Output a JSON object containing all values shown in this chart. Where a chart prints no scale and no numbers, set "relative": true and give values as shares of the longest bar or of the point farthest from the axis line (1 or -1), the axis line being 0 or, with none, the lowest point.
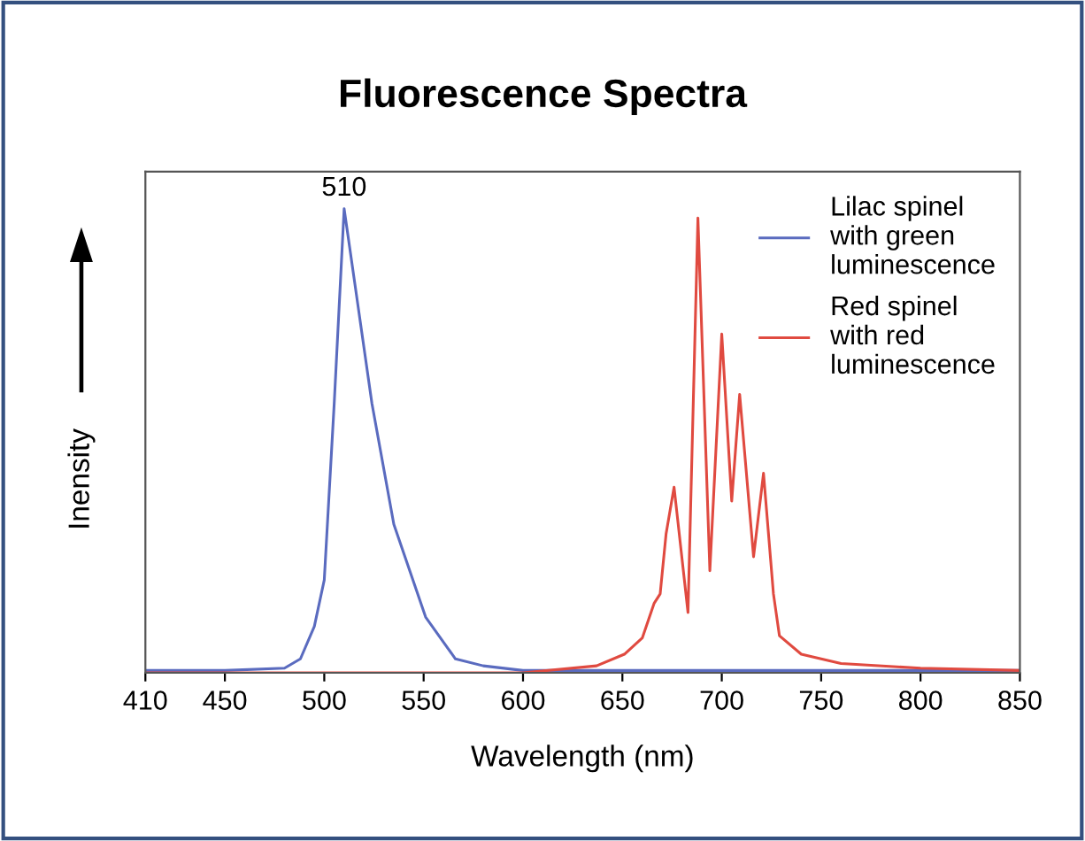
{
  "chart_data": {
    "type": "line",
    "title": "Fluorescence Spectra",
    "xlabel": "Wavelength (nm)",
    "ylabel": "Inensity",
    "relative": true,
    "xlim": [
      410,
      850
    ],
    "xticks": [
      410,
      450,
      500,
      550,
      600,
      650,
      700,
      750,
      800,
      850
    ],
    "grid": false,
    "legend": "top right",
    "marker": "none",
    "line_style": "solid",
    "annotations": [
      {
        "text": "510",
        "x": 510,
        "y": 1.0
      }
    ],
    "series": [
      {
        "name": "Lilac spinel\nwith green\nluminescence",
        "color": "#5a6bbf",
        "x": [
          410,
          450,
          480,
          488,
          495,
          500,
          505,
          510,
          515,
          524,
          535,
          551,
          566,
          580,
          600,
          650,
          700,
          750,
          800,
          850
        ],
        "values": [
          0.005,
          0.005,
          0.01,
          0.03,
          0.1,
          0.2,
          0.58,
          1.0,
          0.85,
          0.58,
          0.32,
          0.12,
          0.03,
          0.015,
          0.005,
          0.005,
          0.005,
          0.005,
          0.005,
          0.005
        ]
      },
      {
        "name": "Red spinel\nwith red\nluminescence",
        "color": "#e04a40",
        "x": [
          410,
          500,
          600,
          637,
          651,
          660,
          666,
          669,
          672,
          676,
          683,
          688,
          694,
          700,
          705,
          709,
          716,
          721,
          726,
          729,
          740,
          760,
          800,
          850
        ],
        "values": [
          0.0,
          0.0,
          0.0,
          0.015,
          0.04,
          0.075,
          0.15,
          0.17,
          0.3,
          0.4,
          0.13,
          0.98,
          0.22,
          0.73,
          0.37,
          0.6,
          0.25,
          0.43,
          0.17,
          0.08,
          0.04,
          0.02,
          0.01,
          0.005
        ]
      }
    ]
  }
}
